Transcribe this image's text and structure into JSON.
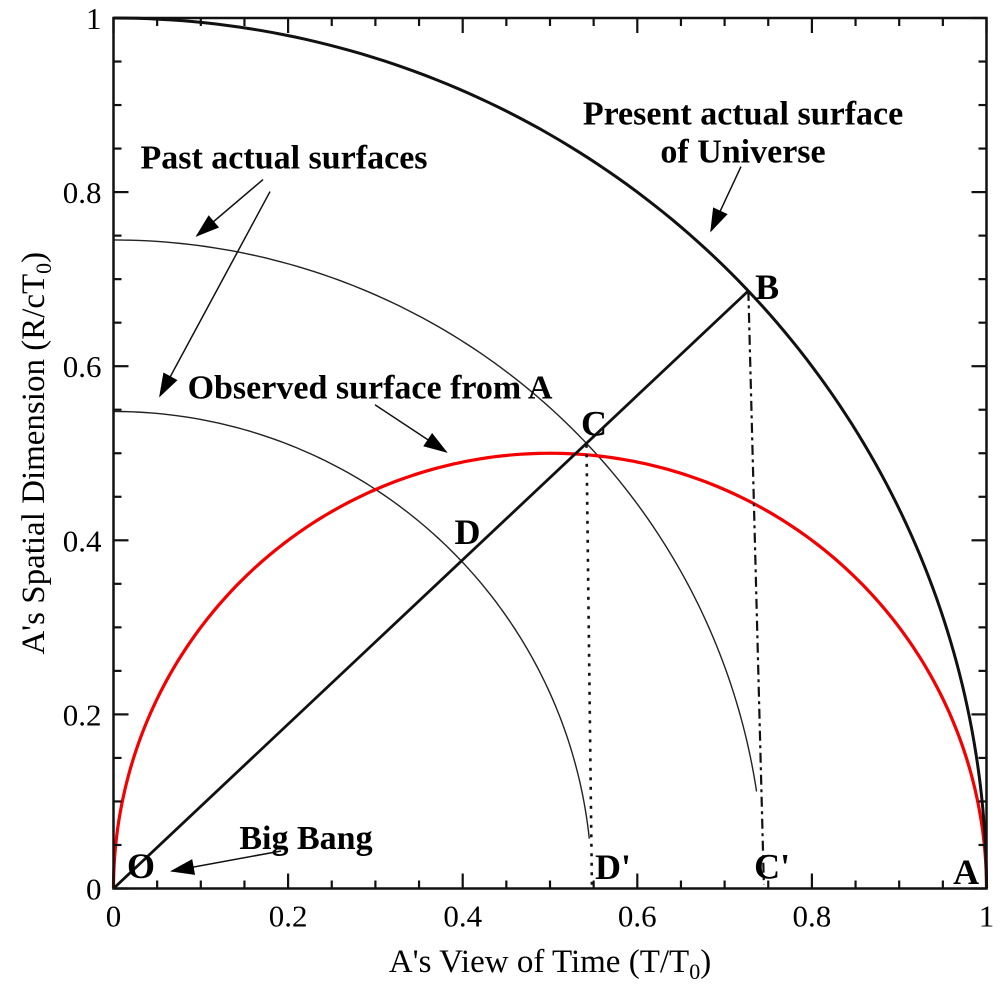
{
  "figure": {
    "background": "#ffffff",
    "description": "Cosmology diagram: observed vs actual surfaces of the Universe in observer A's coordinates"
  },
  "chart_data": {
    "type": "line",
    "title": "",
    "xlabel": "A's View of Time (T/T₀)",
    "ylabel": "A's Spatial Dimension (R/cT₀)",
    "xlabel_parts": [
      {
        "t": "A's View of Time (T/T"
      },
      {
        "t": "0",
        "sub": true
      },
      {
        "t": ")"
      }
    ],
    "ylabel_parts": [
      {
        "t": "A's Spatial Dimension (R/cT"
      },
      {
        "t": "0",
        "sub": true
      },
      {
        "t": ")"
      }
    ],
    "xlim": [
      0,
      1
    ],
    "ylim": [
      0,
      1
    ],
    "grid": false,
    "legend": "none",
    "x_ticks": {
      "values": [
        0,
        0.2,
        0.4,
        0.6,
        0.8,
        1
      ],
      "labels": [
        "0",
        "0.2",
        "0.4",
        "0.6",
        "0.8",
        "1"
      ],
      "minor_step": 0.05
    },
    "y_ticks": {
      "values": [
        0,
        0.2,
        0.4,
        0.6,
        0.8,
        1
      ],
      "labels": [
        "0",
        "0.2",
        "0.4",
        "0.6",
        "0.8",
        "1"
      ],
      "minor_step": 0.05
    },
    "colors": {
      "curve_black": "#111111",
      "thin_black": "#222222",
      "observed_red": "#f40000",
      "text": "#000000"
    },
    "curves": [
      {
        "name": "past-actual-surface-outer",
        "label": "Past actual surface (outer), radius 0.745",
        "kind": "arc",
        "center": [
          0,
          0
        ],
        "radius": 0.745,
        "deg_start": 90,
        "deg_end": 8.6,
        "color_key": "thin_black",
        "width": 1.4
      },
      {
        "name": "past-actual-surface-inner",
        "label": "Past actual surface (inner), radius 0.548",
        "kind": "arc",
        "center": [
          0,
          0
        ],
        "radius": 0.548,
        "deg_start": 90,
        "deg_end": 6.0,
        "color_key": "thin_black",
        "width": 1.4
      },
      {
        "name": "observed-surface-from-A",
        "label": "Observed surface from A: semicircle center (0.5,0) radius 0.5",
        "kind": "arc",
        "center": [
          0.5,
          0
        ],
        "radius": 0.5,
        "deg_start": 180,
        "deg_end": 0,
        "color_key": "observed_red",
        "width": 3.2
      },
      {
        "name": "present-actual-surface",
        "label": "Present actual surface of Universe: quarter circle radius 1",
        "kind": "arc",
        "center": [
          0,
          0
        ],
        "radius": 1.0,
        "deg_start": 90,
        "deg_end": 0,
        "color_key": "curve_black",
        "width": 3
      },
      {
        "name": "sight-line-O-B",
        "label": "Line from O through D and C to B",
        "kind": "segment",
        "from": [
          0,
          0
        ],
        "to": [
          0.7272,
          0.6865
        ],
        "color_key": "curve_black",
        "width": 2.8
      },
      {
        "name": "drop-line-C-Dprime",
        "label": "Dotted drop line from C to D'",
        "kind": "segment",
        "from": [
          0.5418,
          0.5114
        ],
        "to": [
          0.548,
          0.004
        ],
        "color_key": "curve_black",
        "width": 2.6,
        "dash": "3 6.5",
        "dashoffset": 8
      },
      {
        "name": "drop-line-B-Cprime",
        "label": "Dash-dot drop line from B to C'",
        "kind": "segment",
        "from": [
          0.7272,
          0.6865
        ],
        "to": [
          0.745,
          0.004
        ],
        "color_key": "curve_black",
        "width": 2.2,
        "dash": "10 4.5 3 4.5"
      }
    ],
    "key_points": [
      {
        "label": "O",
        "x": 0,
        "y": 0,
        "label_pos": [
          0.0315,
          0.0259
        ]
      },
      {
        "label": "A",
        "x": 1,
        "y": 0,
        "label_pos": [
          0.9766,
          0.019
        ]
      },
      {
        "label": "B",
        "x": 0.7272,
        "y": 0.6865,
        "label_pos": [
          0.7487,
          0.6908
        ]
      },
      {
        "label": "C",
        "x": 0.5418,
        "y": 0.5114,
        "label_pos": [
          0.5504,
          0.534
        ]
      },
      {
        "label": "D",
        "x": 0.3985,
        "y": 0.3762,
        "label_pos": [
          0.4055,
          0.4098
        ]
      },
      {
        "label": "C'",
        "x": 0.745,
        "y": 0,
        "label_pos": [
          0.7544,
          0.0253
        ]
      },
      {
        "label": "D'",
        "x": 0.548,
        "y": 0,
        "label_pos": [
          0.5722,
          0.0247
        ]
      }
    ],
    "annotations": [
      {
        "name": "past-actual-surfaces-label",
        "lines": [
          "Past actual surfaces"
        ],
        "pos": [
          0.1953,
          0.8408
        ],
        "arrows": [
          {
            "from": [
              0.1713,
              0.8144
            ],
            "to": [
              0.0957,
              0.75
            ]
          },
          {
            "from": [
              0.1793,
              0.8006
            ],
            "to": [
              0.0533,
              0.5661
            ]
          }
        ]
      },
      {
        "name": "present-actual-surface-label",
        "lines": [
          "Present actual surface",
          "of Universe"
        ],
        "pos": [
          0.7211,
          0.8914
        ],
        "arrows": [
          {
            "from": [
              0.7188,
              0.8293
            ],
            "to": [
              0.6845,
              0.7557
            ]
          }
        ]
      },
      {
        "name": "observed-surface-label",
        "lines": [
          "Observed surface from A"
        ],
        "pos": [
          0.2938,
          0.5764
        ],
        "arrows": [
          {
            "from": [
              0.2995,
              0.5557
            ],
            "to": [
              0.3809,
              0.5017
            ]
          }
        ]
      },
      {
        "name": "big-bang-label",
        "lines": [
          "Big Bang"
        ],
        "pos": [
          0.2205,
          0.0592
        ],
        "arrows": [
          {
            "from": [
              0.1919,
              0.0431
            ],
            "to": [
              0.067,
              0.0201
            ]
          }
        ]
      }
    ]
  }
}
